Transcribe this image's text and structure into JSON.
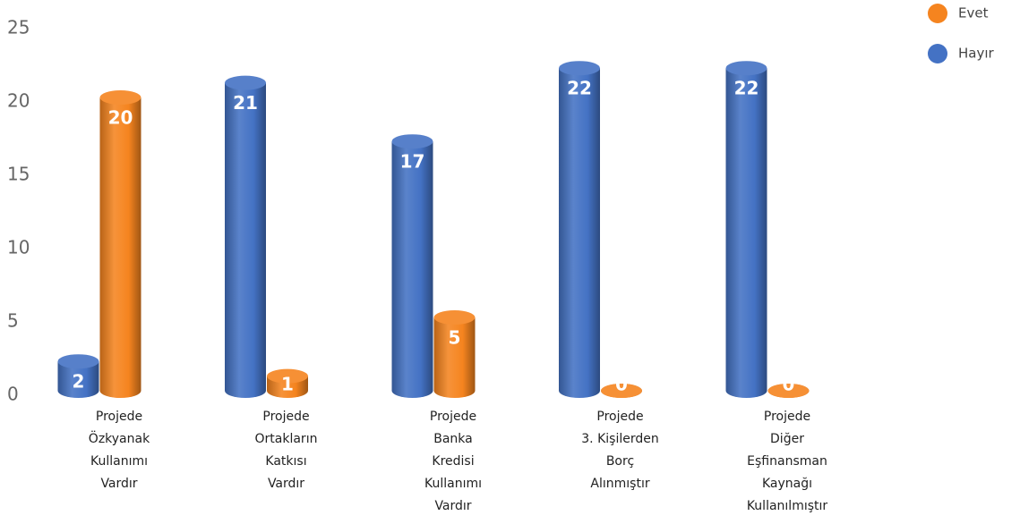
{
  "chart_data": {
    "type": "bar3d",
    "categories": [
      "Projede\nÖzkyanak\nKullanımı\nVardır",
      "Projede\nOrtakların\nKatkısı\nVardır",
      "Projede\nBanka\nKredisi\nKullanımı\nVardır",
      "Projede\n3. Kişilerden\nBorç\nAlınmıştır",
      "Projede\nDiğer\nEşfinansman\nKaynağı\nKullanılmıştır"
    ],
    "series": [
      {
        "name": "Evet",
        "color": "#f5841f",
        "values": [
          20,
          1,
          5,
          0,
          0
        ]
      },
      {
        "name": "Hayır",
        "color": "#4472c4",
        "values": [
          2,
          21,
          17,
          22,
          22
        ]
      }
    ],
    "ylim": [
      0,
      25
    ],
    "yticks": [
      0,
      5,
      10,
      15,
      20,
      25
    ],
    "grid": false,
    "legend": "top-right"
  }
}
